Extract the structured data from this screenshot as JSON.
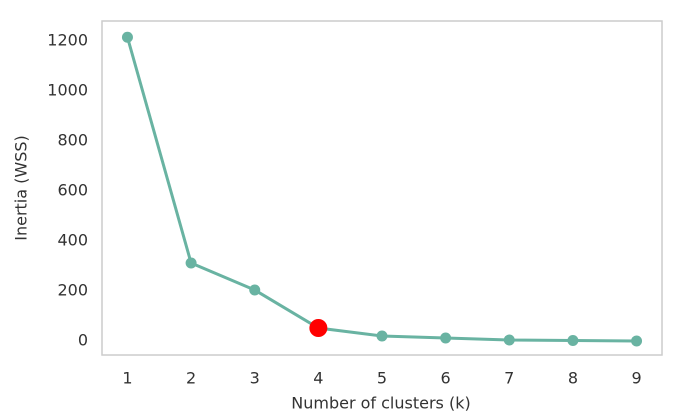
{
  "chart_data": {
    "type": "line",
    "x_label": "Number of clusters (k)",
    "y_label": "Inertia (WSS)",
    "x": [
      1,
      2,
      3,
      4,
      5,
      6,
      7,
      8,
      9
    ],
    "series": [
      {
        "color": "#69b3a2",
        "values": [
          1215,
          312,
          204,
          52,
          20,
          12,
          4,
          2,
          0
        ]
      }
    ],
    "highlight_x": 4,
    "highlight_color": "#ff0000",
    "xlim": [
      0.6,
      9.4
    ],
    "xticks": [
      1,
      2,
      3,
      4,
      5,
      6,
      7,
      8,
      9
    ],
    "ylim": [
      -56,
      1280
    ],
    "yticks": [
      0,
      200,
      400,
      600,
      800,
      1000,
      1200
    ],
    "grid": false
  }
}
